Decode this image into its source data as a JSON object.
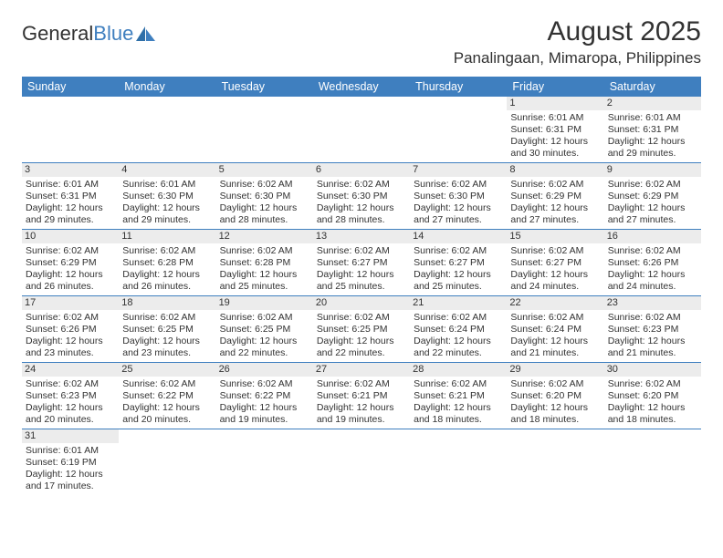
{
  "brand": {
    "part1": "General",
    "part2": "Blue",
    "color1": "#323232",
    "color2": "#3f7fbf",
    "sail_color": "#3f7fbf"
  },
  "title": "August 2025",
  "location": "Panalingaan, Mimaropa, Philippines",
  "header_bg": "#3f7fbf",
  "header_fg": "#ffffff",
  "daynum_bg": "#ececec",
  "row_border_color": "#3f7fbf",
  "text_color": "#323232",
  "font_family": "Arial",
  "title_fontsize_pt": 22,
  "location_fontsize_pt": 13,
  "header_fontsize_pt": 9,
  "cell_fontsize_pt": 8,
  "weekdays": [
    "Sunday",
    "Monday",
    "Tuesday",
    "Wednesday",
    "Thursday",
    "Friday",
    "Saturday"
  ],
  "weeks": [
    [
      null,
      null,
      null,
      null,
      null,
      {
        "n": "1",
        "sunrise": "Sunrise: 6:01 AM",
        "sunset": "Sunset: 6:31 PM",
        "day1": "Daylight: 12 hours",
        "day2": "and 30 minutes."
      },
      {
        "n": "2",
        "sunrise": "Sunrise: 6:01 AM",
        "sunset": "Sunset: 6:31 PM",
        "day1": "Daylight: 12 hours",
        "day2": "and 29 minutes."
      }
    ],
    [
      {
        "n": "3",
        "sunrise": "Sunrise: 6:01 AM",
        "sunset": "Sunset: 6:31 PM",
        "day1": "Daylight: 12 hours",
        "day2": "and 29 minutes."
      },
      {
        "n": "4",
        "sunrise": "Sunrise: 6:01 AM",
        "sunset": "Sunset: 6:30 PM",
        "day1": "Daylight: 12 hours",
        "day2": "and 29 minutes."
      },
      {
        "n": "5",
        "sunrise": "Sunrise: 6:02 AM",
        "sunset": "Sunset: 6:30 PM",
        "day1": "Daylight: 12 hours",
        "day2": "and 28 minutes."
      },
      {
        "n": "6",
        "sunrise": "Sunrise: 6:02 AM",
        "sunset": "Sunset: 6:30 PM",
        "day1": "Daylight: 12 hours",
        "day2": "and 28 minutes."
      },
      {
        "n": "7",
        "sunrise": "Sunrise: 6:02 AM",
        "sunset": "Sunset: 6:30 PM",
        "day1": "Daylight: 12 hours",
        "day2": "and 27 minutes."
      },
      {
        "n": "8",
        "sunrise": "Sunrise: 6:02 AM",
        "sunset": "Sunset: 6:29 PM",
        "day1": "Daylight: 12 hours",
        "day2": "and 27 minutes."
      },
      {
        "n": "9",
        "sunrise": "Sunrise: 6:02 AM",
        "sunset": "Sunset: 6:29 PM",
        "day1": "Daylight: 12 hours",
        "day2": "and 27 minutes."
      }
    ],
    [
      {
        "n": "10",
        "sunrise": "Sunrise: 6:02 AM",
        "sunset": "Sunset: 6:29 PM",
        "day1": "Daylight: 12 hours",
        "day2": "and 26 minutes."
      },
      {
        "n": "11",
        "sunrise": "Sunrise: 6:02 AM",
        "sunset": "Sunset: 6:28 PM",
        "day1": "Daylight: 12 hours",
        "day2": "and 26 minutes."
      },
      {
        "n": "12",
        "sunrise": "Sunrise: 6:02 AM",
        "sunset": "Sunset: 6:28 PM",
        "day1": "Daylight: 12 hours",
        "day2": "and 25 minutes."
      },
      {
        "n": "13",
        "sunrise": "Sunrise: 6:02 AM",
        "sunset": "Sunset: 6:27 PM",
        "day1": "Daylight: 12 hours",
        "day2": "and 25 minutes."
      },
      {
        "n": "14",
        "sunrise": "Sunrise: 6:02 AM",
        "sunset": "Sunset: 6:27 PM",
        "day1": "Daylight: 12 hours",
        "day2": "and 25 minutes."
      },
      {
        "n": "15",
        "sunrise": "Sunrise: 6:02 AM",
        "sunset": "Sunset: 6:27 PM",
        "day1": "Daylight: 12 hours",
        "day2": "and 24 minutes."
      },
      {
        "n": "16",
        "sunrise": "Sunrise: 6:02 AM",
        "sunset": "Sunset: 6:26 PM",
        "day1": "Daylight: 12 hours",
        "day2": "and 24 minutes."
      }
    ],
    [
      {
        "n": "17",
        "sunrise": "Sunrise: 6:02 AM",
        "sunset": "Sunset: 6:26 PM",
        "day1": "Daylight: 12 hours",
        "day2": "and 23 minutes."
      },
      {
        "n": "18",
        "sunrise": "Sunrise: 6:02 AM",
        "sunset": "Sunset: 6:25 PM",
        "day1": "Daylight: 12 hours",
        "day2": "and 23 minutes."
      },
      {
        "n": "19",
        "sunrise": "Sunrise: 6:02 AM",
        "sunset": "Sunset: 6:25 PM",
        "day1": "Daylight: 12 hours",
        "day2": "and 22 minutes."
      },
      {
        "n": "20",
        "sunrise": "Sunrise: 6:02 AM",
        "sunset": "Sunset: 6:25 PM",
        "day1": "Daylight: 12 hours",
        "day2": "and 22 minutes."
      },
      {
        "n": "21",
        "sunrise": "Sunrise: 6:02 AM",
        "sunset": "Sunset: 6:24 PM",
        "day1": "Daylight: 12 hours",
        "day2": "and 22 minutes."
      },
      {
        "n": "22",
        "sunrise": "Sunrise: 6:02 AM",
        "sunset": "Sunset: 6:24 PM",
        "day1": "Daylight: 12 hours",
        "day2": "and 21 minutes."
      },
      {
        "n": "23",
        "sunrise": "Sunrise: 6:02 AM",
        "sunset": "Sunset: 6:23 PM",
        "day1": "Daylight: 12 hours",
        "day2": "and 21 minutes."
      }
    ],
    [
      {
        "n": "24",
        "sunrise": "Sunrise: 6:02 AM",
        "sunset": "Sunset: 6:23 PM",
        "day1": "Daylight: 12 hours",
        "day2": "and 20 minutes."
      },
      {
        "n": "25",
        "sunrise": "Sunrise: 6:02 AM",
        "sunset": "Sunset: 6:22 PM",
        "day1": "Daylight: 12 hours",
        "day2": "and 20 minutes."
      },
      {
        "n": "26",
        "sunrise": "Sunrise: 6:02 AM",
        "sunset": "Sunset: 6:22 PM",
        "day1": "Daylight: 12 hours",
        "day2": "and 19 minutes."
      },
      {
        "n": "27",
        "sunrise": "Sunrise: 6:02 AM",
        "sunset": "Sunset: 6:21 PM",
        "day1": "Daylight: 12 hours",
        "day2": "and 19 minutes."
      },
      {
        "n": "28",
        "sunrise": "Sunrise: 6:02 AM",
        "sunset": "Sunset: 6:21 PM",
        "day1": "Daylight: 12 hours",
        "day2": "and 18 minutes."
      },
      {
        "n": "29",
        "sunrise": "Sunrise: 6:02 AM",
        "sunset": "Sunset: 6:20 PM",
        "day1": "Daylight: 12 hours",
        "day2": "and 18 minutes."
      },
      {
        "n": "30",
        "sunrise": "Sunrise: 6:02 AM",
        "sunset": "Sunset: 6:20 PM",
        "day1": "Daylight: 12 hours",
        "day2": "and 18 minutes."
      }
    ],
    [
      {
        "n": "31",
        "sunrise": "Sunrise: 6:01 AM",
        "sunset": "Sunset: 6:19 PM",
        "day1": "Daylight: 12 hours",
        "day2": "and 17 minutes."
      },
      null,
      null,
      null,
      null,
      null,
      null
    ]
  ]
}
